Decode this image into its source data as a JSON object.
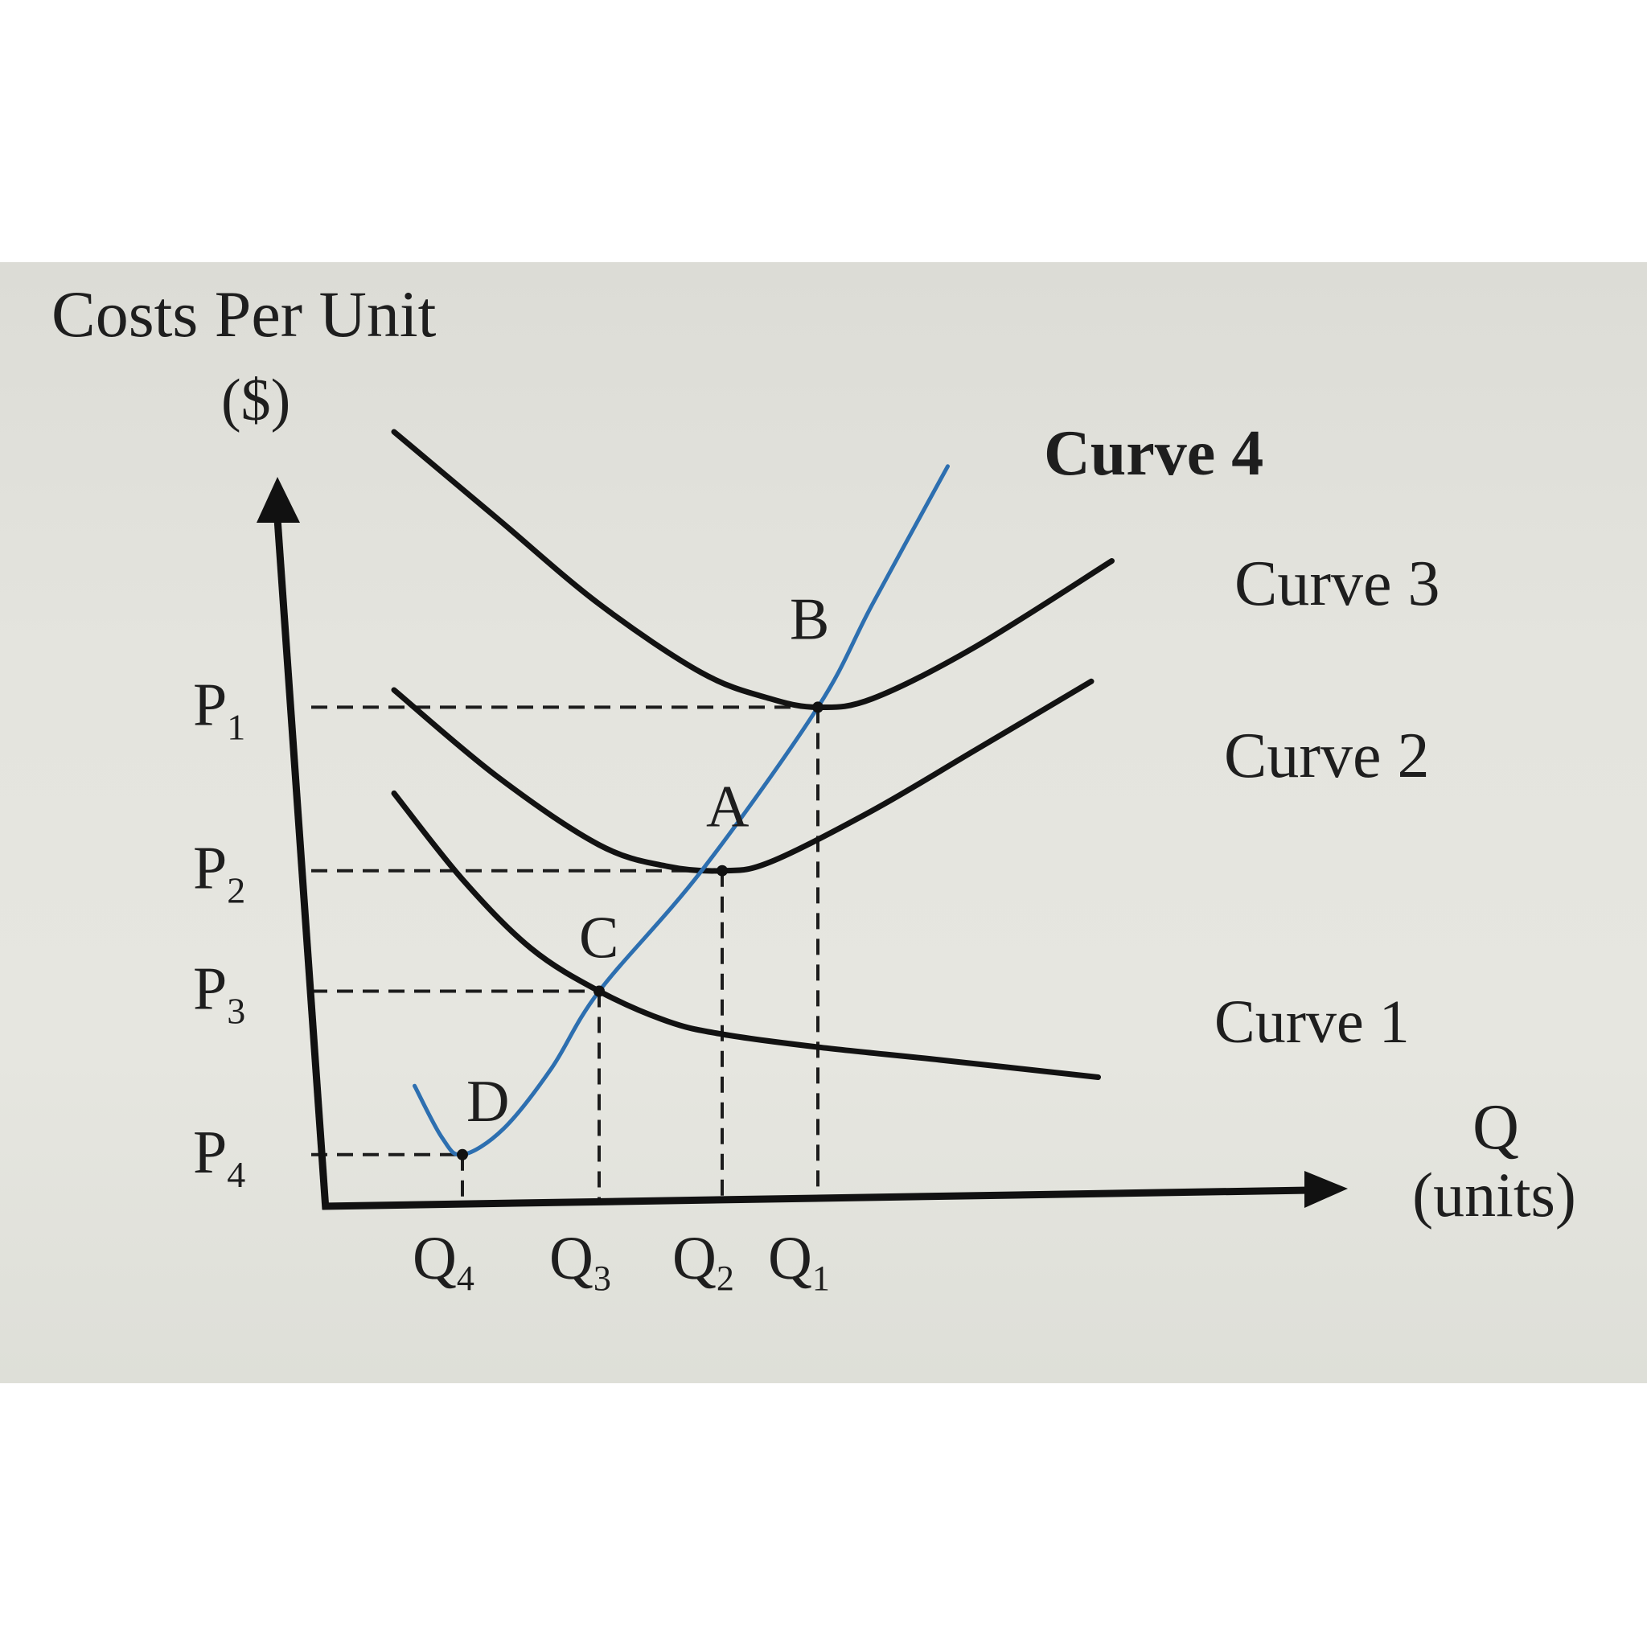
{
  "chart_data": {
    "type": "line",
    "title": "",
    "ylabel_line1": "Costs Per Unit",
    "ylabel_line2": "($)",
    "xlabel_line1": "Q",
    "xlabel_line2": "(units)",
    "x_ticks": [
      {
        "key": "Q4",
        "base": "Q",
        "sub": "4",
        "x": 2.0
      },
      {
        "key": "Q3",
        "base": "Q",
        "sub": "3",
        "x": 4.0
      },
      {
        "key": "Q2",
        "base": "Q",
        "sub": "2",
        "x": 5.8
      },
      {
        "key": "Q1",
        "base": "Q",
        "sub": "1",
        "x": 7.2
      }
    ],
    "y_ticks": [
      {
        "key": "P1",
        "base": "P",
        "sub": "1",
        "y": 5.8
      },
      {
        "key": "P2",
        "base": "P",
        "sub": "2",
        "y": 3.9
      },
      {
        "key": "P3",
        "base": "P",
        "sub": "3",
        "y": 2.5
      },
      {
        "key": "P4",
        "base": "P",
        "sub": "4",
        "y": 0.6
      }
    ],
    "xlim": [
      0,
      13
    ],
    "ylim": [
      0,
      9.5
    ],
    "series": [
      {
        "name": "Curve 1",
        "color": "#121212",
        "points": [
          [
            1.0,
            4.8
          ],
          [
            2.0,
            3.8
          ],
          [
            3.0,
            3.0
          ],
          [
            4.0,
            2.5
          ],
          [
            5.0,
            2.15
          ],
          [
            5.8,
            2.0
          ],
          [
            7.2,
            1.85
          ],
          [
            9.0,
            1.7
          ],
          [
            11.3,
            1.5
          ]
        ]
      },
      {
        "name": "Curve 2",
        "color": "#121212",
        "points": [
          [
            1.0,
            6.0
          ],
          [
            2.5,
            5.0
          ],
          [
            4.0,
            4.2
          ],
          [
            5.0,
            3.95
          ],
          [
            5.8,
            3.9
          ],
          [
            6.5,
            4.0
          ],
          [
            8.0,
            4.6
          ],
          [
            9.5,
            5.3
          ],
          [
            11.2,
            6.1
          ]
        ]
      },
      {
        "name": "Curve 3",
        "color": "#121212",
        "points": [
          [
            1.0,
            9.0
          ],
          [
            2.5,
            8.0
          ],
          [
            4.0,
            7.0
          ],
          [
            5.5,
            6.2
          ],
          [
            6.5,
            5.9
          ],
          [
            7.2,
            5.8
          ],
          [
            8.0,
            5.9
          ],
          [
            9.5,
            6.5
          ],
          [
            11.5,
            7.5
          ]
        ]
      },
      {
        "name": "Curve 4",
        "color": "#2d6fb0",
        "points": [
          [
            1.3,
            1.4
          ],
          [
            1.7,
            0.8
          ],
          [
            2.0,
            0.6
          ],
          [
            2.6,
            0.9
          ],
          [
            3.3,
            1.6
          ],
          [
            4.0,
            2.5
          ],
          [
            5.5,
            3.9
          ],
          [
            7.2,
            5.8
          ],
          [
            8.0,
            7.0
          ],
          [
            9.1,
            8.6
          ]
        ]
      }
    ],
    "points": [
      {
        "label": "A",
        "x": 5.8,
        "y": 3.9
      },
      {
        "label": "B",
        "x": 7.2,
        "y": 5.8
      },
      {
        "label": "C",
        "x": 4.0,
        "y": 2.5
      },
      {
        "label": "D",
        "x": 2.0,
        "y": 0.6
      }
    ],
    "grid": false,
    "legend": "none"
  }
}
